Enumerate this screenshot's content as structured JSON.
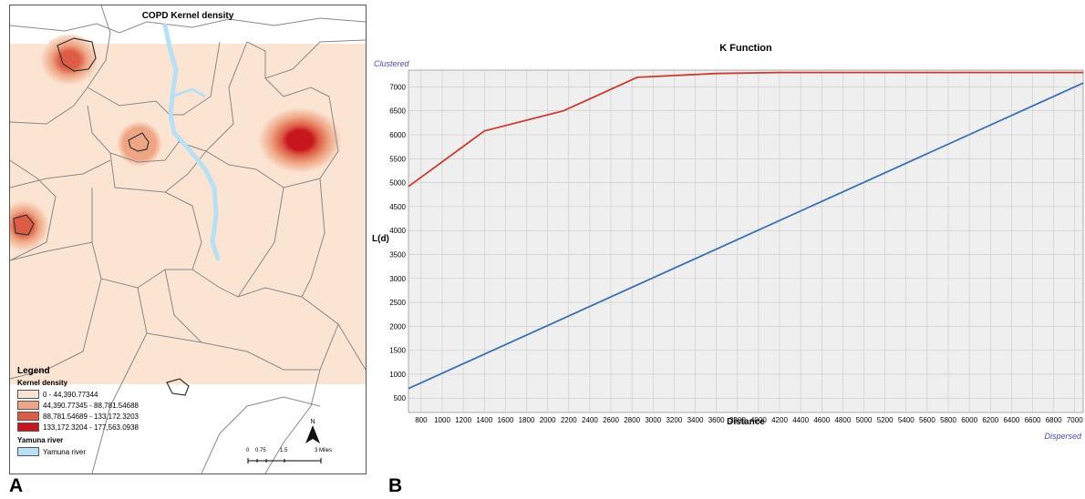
{
  "panels": {
    "a": "A",
    "b": "B"
  },
  "map": {
    "title": "COPD Kernel density",
    "legend": {
      "heading": "Legend",
      "density_title": "Kernel density",
      "classes": [
        {
          "label": "0 - 44,390.77344",
          "color": "#fce4d2"
        },
        {
          "label": "44,390.77345 - 88,781.54688",
          "color": "#eea583"
        },
        {
          "label": "88,781.54689 - 133,172.3203",
          "color": "#dd5c45"
        },
        {
          "label": "133,172.3204 - 177,563.0938",
          "color": "#c8161e"
        }
      ],
      "river_title": "Yamuna river",
      "river_label": "Yamuna river",
      "river_color": "#b6e0f5"
    },
    "scale": {
      "ticks": [
        "0",
        "0.75",
        "1.5",
        "3 Miles"
      ]
    },
    "north_label": "N"
  },
  "chart_data": {
    "type": "line",
    "title": "K Function",
    "xlabel": "Distance",
    "ylabel": "L(d)",
    "top_left_note": "Clustered",
    "bottom_right_note": "Dispersed",
    "xlim": [
      680,
      7080
    ],
    "ylim": [
      200,
      7350
    ],
    "x_ticks": [
      800,
      1000,
      1200,
      1400,
      1600,
      1800,
      2000,
      2200,
      2400,
      2600,
      2800,
      3000,
      3200,
      3400,
      3600,
      3800,
      4000,
      4200,
      4400,
      4600,
      4800,
      5000,
      5200,
      5400,
      5600,
      5800,
      6000,
      6200,
      6400,
      6600,
      6800,
      7000
    ],
    "y_ticks": [
      500,
      1000,
      1500,
      2000,
      2500,
      3000,
      3500,
      4000,
      4500,
      5000,
      5500,
      6000,
      6500,
      7000
    ],
    "grid": true,
    "series": [
      {
        "color": "#cc3b32",
        "x": [
          680,
          1400,
          2150,
          2850,
          3600,
          4200,
          7080
        ],
        "y": [
          4920,
          6080,
          6500,
          7200,
          7280,
          7300,
          7300
        ]
      },
      {
        "color": "#3a72b0",
        "x": [
          680,
          7080
        ],
        "y": [
          700,
          7080
        ]
      }
    ]
  }
}
